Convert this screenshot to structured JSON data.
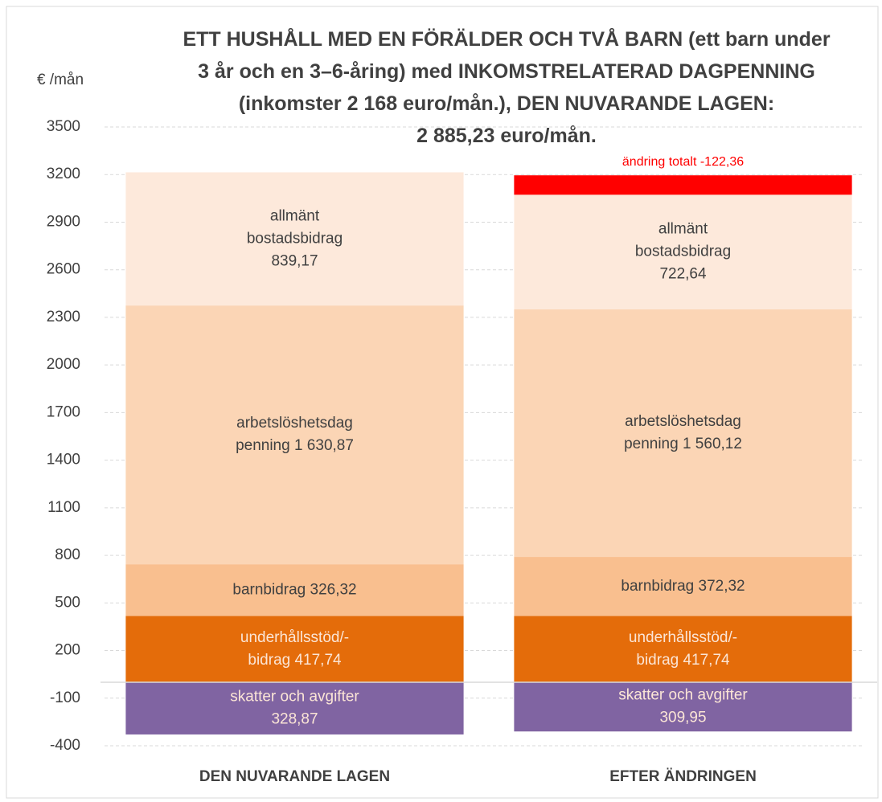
{
  "chart_data": {
    "type": "stacked_bar",
    "title": "ETT HUSHÅLL MED EN FÖRÄLDER OCH TVÅ BARN (ett barn under\n3 år och en 3–6-åring) med INKOMSTRELATERAD DAGPENNING\n(inkomster  2 168 euro/mån.), DEN NUVARANDE LAGEN:\n2 885,23 euro/mån.",
    "y_axis_label": "€ /mån",
    "categories": [
      "DEN NUVARANDE LAGEN",
      "EFTER ÄNDRINGEN"
    ],
    "series": [
      {
        "color": "#e46c0a",
        "label_color": "#fbe5d6",
        "values": [
          417.74,
          417.74
        ],
        "value_labels": [
          "underhållsstöd/-\nbidrag 417,74",
          "underhållsstöd/-\nbidrag 417,74"
        ]
      },
      {
        "color": "#f9bf8f",
        "label_color": "#404040",
        "values": [
          326.32,
          372.32
        ],
        "value_labels": [
          "barnbidrag 326,32",
          "barnbidrag 372,32"
        ]
      },
      {
        "color": "#fbd5b5",
        "label_color": "#404040",
        "values": [
          1630.87,
          1560.12
        ],
        "value_labels": [
          "arbetslöshetsdag\npenning 1 630,87",
          "arbetslöshetsdag\npenning 1 560,12"
        ]
      },
      {
        "color": "#fde9db",
        "label_color": "#404040",
        "values": [
          839.17,
          722.64
        ],
        "value_labels": [
          "allmänt\nbostadsbidrag\n839,17",
          "allmänt\nbostadsbidrag\n722,64"
        ]
      },
      {
        "color": "#ff0000",
        "label_color": "#ff0000",
        "stack": "top",
        "values": [
          null,
          -122.36
        ],
        "value_labels": [
          null,
          "ändring totalt -122,36"
        ]
      },
      {
        "color": "#8064a2",
        "label_color": "#fbe5d6",
        "values": [
          -328.87,
          -309.95
        ],
        "value_labels": [
          "skatter och avgifter\n328,87",
          "skatter och avgifter\n309,95"
        ]
      }
    ],
    "ylim": [
      -400,
      3500
    ],
    "yticks": [
      -400,
      -100,
      200,
      500,
      800,
      1100,
      1400,
      1700,
      2000,
      2300,
      2600,
      2900,
      3200,
      3500
    ],
    "grid": true
  }
}
